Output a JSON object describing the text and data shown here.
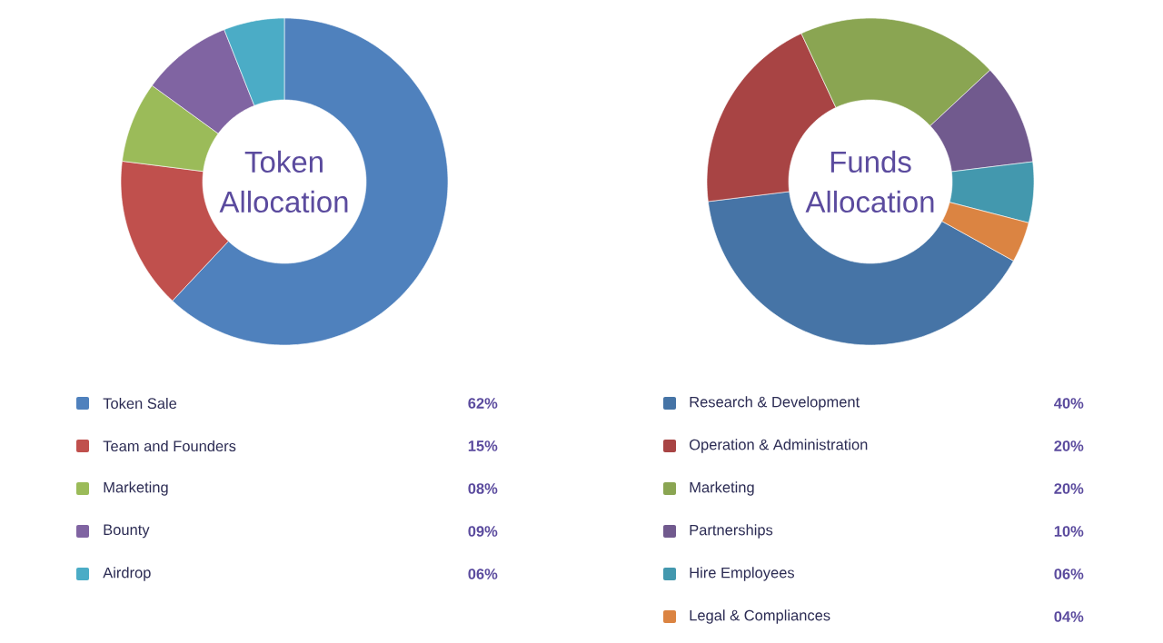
{
  "chart_data": [
    {
      "type": "donut",
      "title": "Token Allocation",
      "legend": "bottom",
      "categories": [
        "Token Sale",
        "Team and Founders",
        "Marketing",
        "Bounty",
        "Airdrop"
      ],
      "values": [
        62,
        15,
        8,
        9,
        6
      ],
      "value_labels": [
        "62%",
        "15%",
        "08%",
        "09%",
        "06%"
      ],
      "colors": [
        "#4f81bd",
        "#c0504d",
        "#9bbb59",
        "#8064a2",
        "#4bacc6"
      ]
    },
    {
      "type": "donut",
      "title": "Funds Allocation",
      "legend": "bottom",
      "categories": [
        "Research & Development",
        "Operation & Administration",
        "Marketing",
        "Partnerships",
        "Hire Employees",
        "Legal & Compliances"
      ],
      "values": [
        40,
        20,
        20,
        10,
        6,
        4
      ],
      "value_labels": [
        "40%",
        "20%",
        "20%",
        "10%",
        "06%",
        "04%"
      ],
      "colors": [
        "#4674a6",
        "#a84444",
        "#8aa552",
        "#715a8e",
        "#4398ae",
        "#db8442"
      ]
    }
  ]
}
